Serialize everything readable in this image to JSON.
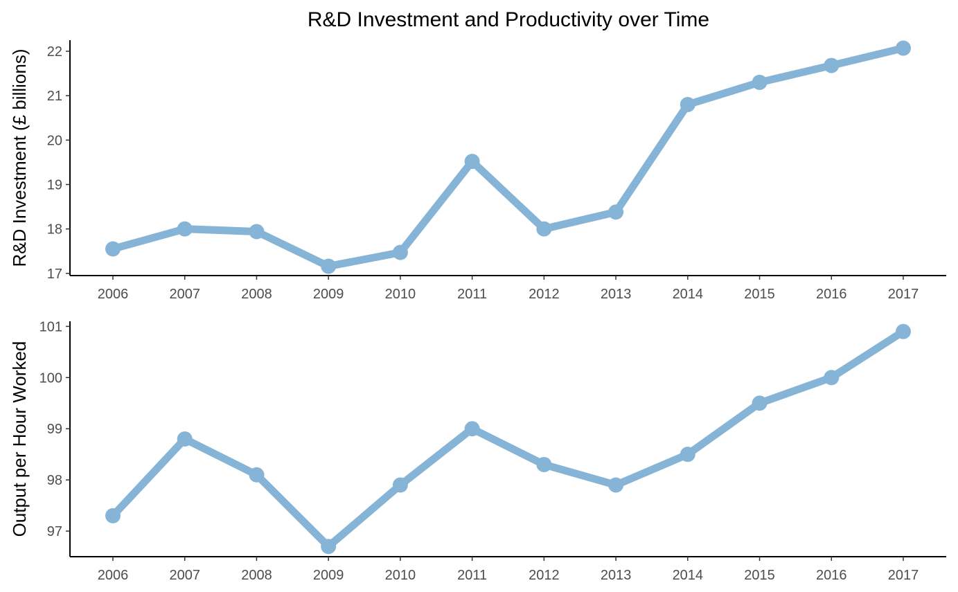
{
  "title": "R&D Investment and Productivity over Time",
  "line_color": "#86b4d6",
  "chart_data": [
    {
      "type": "line",
      "ylabel": "R&D Investment (£ billions)",
      "x": [
        2006,
        2007,
        2008,
        2009,
        2010,
        2011,
        2012,
        2013,
        2014,
        2015,
        2016,
        2017
      ],
      "values": [
        17.55,
        18.0,
        17.94,
        17.16,
        17.47,
        19.52,
        18.0,
        18.38,
        20.8,
        21.3,
        21.68,
        22.07
      ],
      "ylim": [
        16.95,
        22.25
      ],
      "yticks": [
        17,
        18,
        19,
        20,
        21,
        22
      ],
      "grid": false
    },
    {
      "type": "line",
      "ylabel": "Output per Hour Worked",
      "x": [
        2006,
        2007,
        2008,
        2009,
        2010,
        2011,
        2012,
        2013,
        2014,
        2015,
        2016,
        2017
      ],
      "values": [
        97.3,
        98.8,
        98.1,
        96.7,
        97.9,
        99.0,
        98.3,
        97.9,
        98.5,
        99.5,
        100.0,
        100.9
      ],
      "ylim": [
        96.5,
        101.1
      ],
      "yticks": [
        97,
        98,
        99,
        100,
        101
      ],
      "grid": false
    }
  ]
}
